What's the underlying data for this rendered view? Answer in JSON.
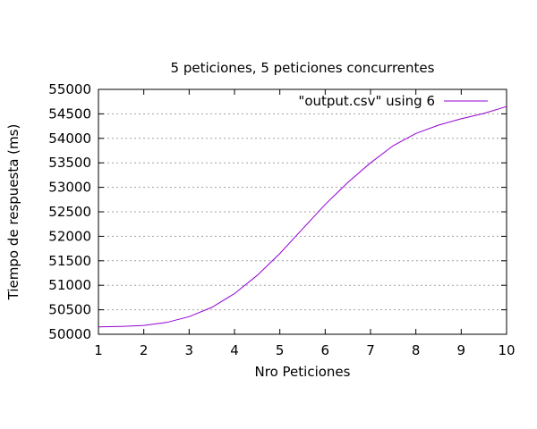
{
  "chart_data": {
    "type": "line",
    "title": "5 peticiones, 5 peticiones concurrentes",
    "xlabel": "Nro Peticiones",
    "ylabel": "Tiempo de respuesta (ms)",
    "xlim": [
      1,
      10
    ],
    "ylim": [
      50000,
      55000
    ],
    "x_ticks": [
      1,
      2,
      3,
      4,
      5,
      6,
      7,
      8,
      9,
      10
    ],
    "y_ticks": [
      50000,
      50500,
      51000,
      51500,
      52000,
      52500,
      53000,
      53500,
      54000,
      54500,
      55000
    ],
    "grid": "y-dotted",
    "legend_position": "top-right",
    "series": [
      {
        "name": "\"output.csv\" using 6",
        "color": "#9400d3",
        "x": [
          1,
          1.5,
          2,
          2.5,
          3,
          3.5,
          4,
          4.5,
          5,
          5.5,
          6,
          6.5,
          7,
          7.5,
          8,
          8.5,
          9,
          9.5,
          10
        ],
        "y": [
          50150,
          50160,
          50180,
          50240,
          50360,
          50550,
          50830,
          51200,
          51650,
          52150,
          52650,
          53100,
          53500,
          53850,
          54100,
          54270,
          54400,
          54510,
          54650
        ]
      }
    ]
  }
}
